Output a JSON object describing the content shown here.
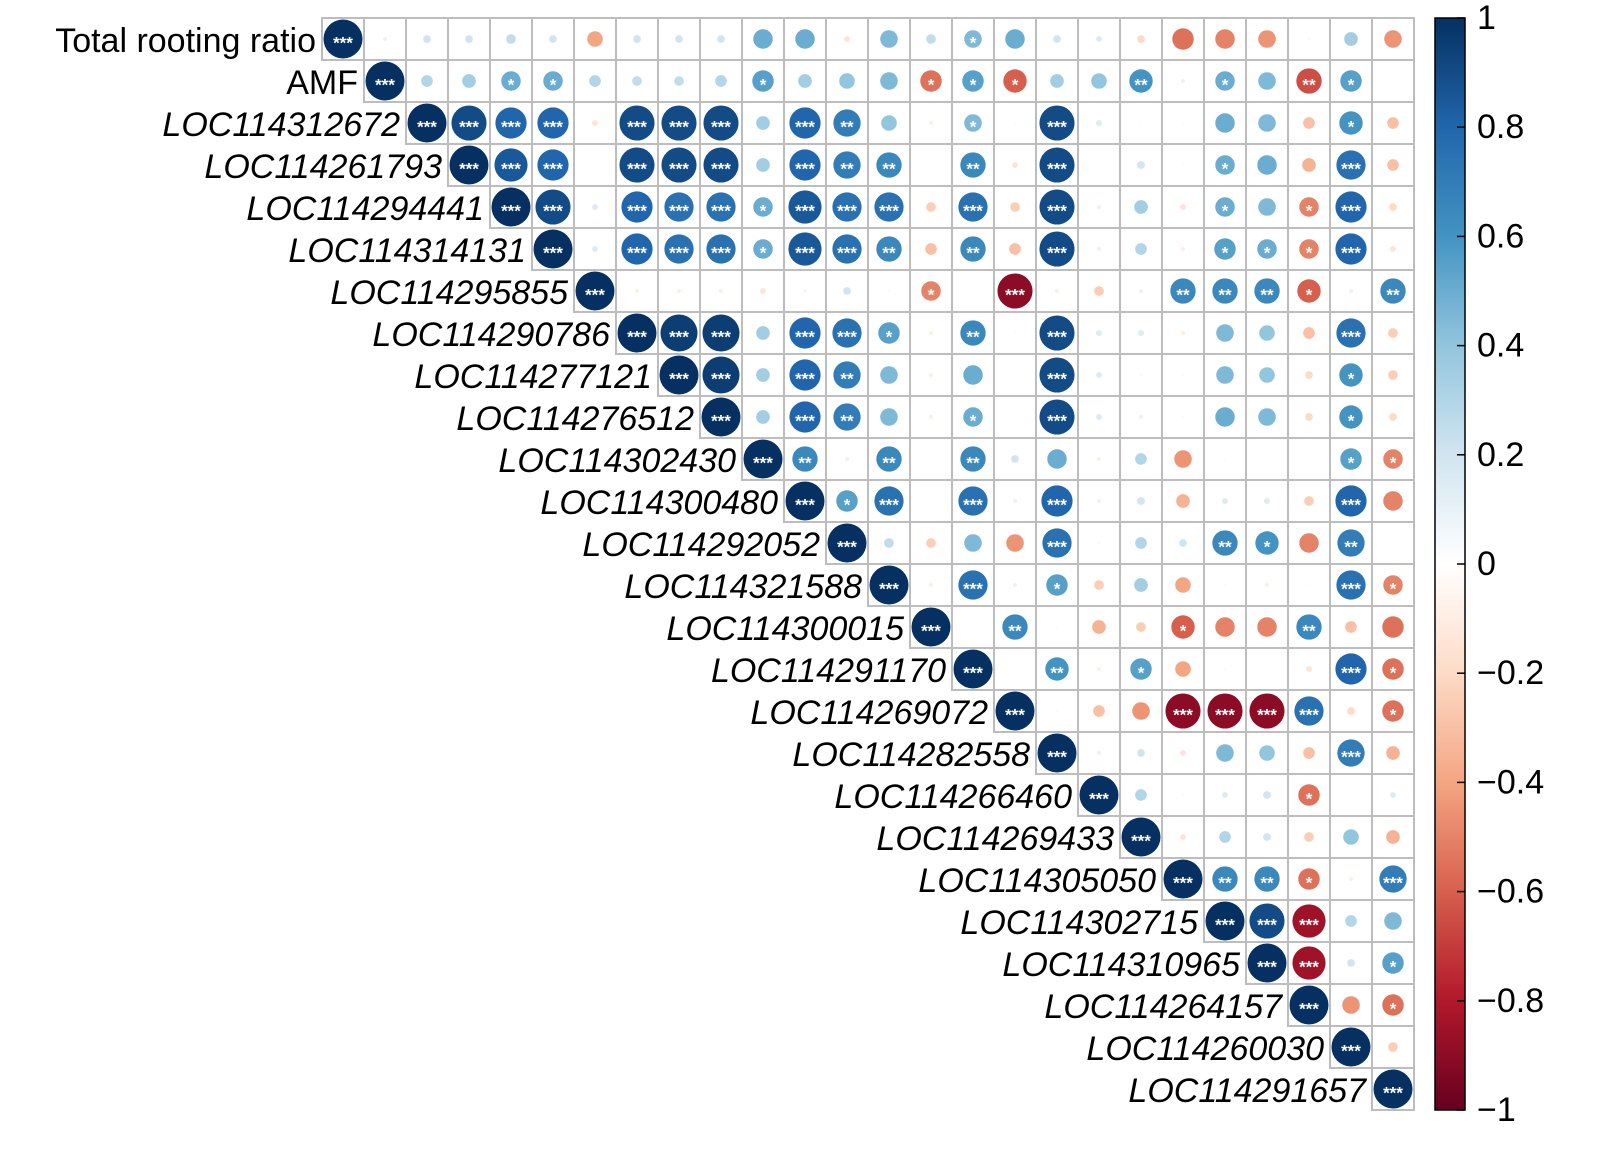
{
  "chart_data": {
    "type": "corrplot",
    "variables": [
      "Total rooting ratio",
      "AMF",
      "LOC114312672",
      "LOC114261793",
      "LOC114294441",
      "LOC114314131",
      "LOC114295855",
      "LOC114290786",
      "LOC114277121",
      "LOC114276512",
      "LOC114302430",
      "LOC114300480",
      "LOC114292052",
      "LOC114321588",
      "LOC114300015",
      "LOC114291170",
      "LOC114269072",
      "LOC114282558",
      "LOC114266460",
      "LOC114269433",
      "LOC114305050",
      "LOC114302715",
      "LOC114310965",
      "LOC114264157",
      "LOC114260030",
      "LOC114291657"
    ],
    "matrix": [
      [
        1,
        0.1,
        0.2,
        0.2,
        0.25,
        0.2,
        -0.4,
        0.2,
        0.2,
        0.2,
        0.5,
        0.5,
        -0.15,
        0.45,
        0.25,
        0.45,
        0.5,
        0.2,
        0.15,
        -0.2,
        -0.55,
        -0.5,
        -0.45,
        0.05,
        0.35,
        -0.45
      ],
      [
        1,
        0.3,
        0.35,
        0.5,
        0.5,
        0.3,
        0.25,
        0.25,
        0.3,
        0.55,
        0.35,
        0.4,
        0.45,
        -0.55,
        0.55,
        -0.6,
        0.35,
        0.4,
        0.6,
        0.1,
        0.5,
        0.45,
        -0.65,
        0.55,
        0.02
      ],
      [
        1,
        0.9,
        0.8,
        0.8,
        -0.15,
        0.9,
        0.9,
        0.9,
        0.35,
        0.8,
        0.7,
        0.4,
        -0.1,
        0.45,
        -0.05,
        0.9,
        0.15,
        0.05,
        -0.05,
        0.5,
        0.45,
        -0.3,
        0.6,
        -0.3
      ],
      [
        1,
        0.85,
        0.8,
        0.02,
        0.9,
        0.9,
        0.9,
        0.35,
        0.8,
        0.7,
        0.65,
        -0.05,
        0.65,
        -0.15,
        0.9,
        0.01,
        0.2,
        -0.05,
        0.5,
        0.5,
        -0.35,
        0.75,
        -0.3
      ],
      [
        1,
        0.9,
        0.15,
        0.8,
        0.75,
        0.75,
        0.5,
        0.85,
        0.75,
        0.75,
        -0.25,
        0.75,
        -0.25,
        0.9,
        0.1,
        0.35,
        -0.15,
        0.5,
        0.45,
        -0.5,
        0.8,
        -0.2
      ],
      [
        1,
        0.15,
        0.8,
        0.75,
        0.75,
        0.5,
        0.85,
        0.75,
        0.65,
        -0.3,
        0.65,
        -0.3,
        0.9,
        0.1,
        0.3,
        -0.1,
        0.55,
        0.5,
        -0.5,
        0.8,
        -0.15
      ],
      [
        1,
        -0.1,
        -0.1,
        -0.1,
        -0.15,
        -0.08,
        0.2,
        0.05,
        -0.5,
        0.0,
        -0.9,
        -0.1,
        -0.25,
        0.1,
        0.65,
        0.65,
        0.65,
        -0.6,
        0.1,
        0.65
      ],
      [
        1,
        0.95,
        0.95,
        0.35,
        0.8,
        0.75,
        0.55,
        -0.1,
        0.65,
        -0.05,
        0.9,
        0.15,
        0.15,
        -0.1,
        0.45,
        0.4,
        -0.3,
        0.75,
        -0.25
      ],
      [
        1,
        0.95,
        0.35,
        0.8,
        0.7,
        0.45,
        -0.1,
        0.5,
        -0.02,
        0.9,
        0.15,
        0.05,
        -0.05,
        0.45,
        0.4,
        -0.2,
        0.6,
        -0.25
      ],
      [
        1,
        0.35,
        0.8,
        0.7,
        0.45,
        -0.1,
        0.5,
        -0.02,
        0.9,
        0.15,
        0.1,
        -0.05,
        0.5,
        0.45,
        -0.2,
        0.6,
        -0.2
      ],
      [
        1,
        0.65,
        0.1,
        0.65,
        -0.05,
        0.65,
        0.2,
        0.5,
        -0.1,
        0.3,
        -0.45,
        -0.05,
        -0.05,
        0.02,
        0.55,
        -0.5
      ],
      [
        1,
        0.55,
        0.75,
        -0.05,
        0.75,
        0.1,
        0.8,
        0.1,
        0.2,
        -0.35,
        0.15,
        0.15,
        -0.25,
        0.8,
        -0.5
      ],
      [
        1,
        0.25,
        -0.25,
        0.45,
        -0.45,
        0.75,
        0.05,
        0.3,
        0.2,
        0.65,
        0.6,
        -0.5,
        0.7,
        0.02
      ],
      [
        1,
        -0.1,
        0.75,
        0.1,
        0.55,
        -0.25,
        0.35,
        -0.4,
        -0.05,
        -0.1,
        -0.05,
        0.75,
        -0.5
      ],
      [
        1,
        -0.05,
        0.65,
        -0.05,
        -0.35,
        -0.25,
        -0.6,
        -0.5,
        -0.5,
        0.65,
        -0.3,
        -0.55
      ],
      [
        1,
        0.02,
        0.6,
        -0.1,
        0.55,
        -0.4,
        0.05,
        0.02,
        -0.15,
        0.8,
        -0.55
      ],
      [
        1,
        -0.05,
        -0.3,
        -0.45,
        -0.9,
        -0.9,
        -0.9,
        0.75,
        -0.2,
        -0.55
      ],
      [
        1,
        0.1,
        0.2,
        -0.15,
        0.45,
        0.4,
        -0.3,
        0.7,
        -0.35
      ],
      [
        1,
        0.3,
        0.05,
        0.15,
        0.2,
        -0.55,
        0.02,
        0.15
      ],
      [
        1,
        -0.15,
        0.3,
        0.2,
        -0.25,
        0.4,
        -0.35
      ],
      [
        1,
        0.65,
        0.65,
        -0.55,
        -0.1,
        0.7
      ],
      [
        1,
        0.9,
        -0.85,
        0.3,
        0.45
      ],
      [
        1,
        -0.85,
        0.2,
        0.55
      ],
      [
        1,
        -0.45,
        -0.55
      ],
      [
        1,
        -0.25
      ],
      [
        1
      ]
    ],
    "significance": [
      [
        "***",
        null,
        null,
        null,
        null,
        null,
        null,
        null,
        null,
        null,
        null,
        null,
        null,
        null,
        null,
        "*",
        null,
        null,
        null,
        null,
        null,
        null,
        null,
        null,
        null,
        null
      ],
      [
        "***",
        null,
        null,
        "*",
        "*",
        null,
        null,
        null,
        null,
        "*",
        null,
        null,
        null,
        "*",
        "*",
        "*",
        null,
        null,
        "**",
        null,
        "*",
        null,
        "**",
        "*",
        null
      ],
      [
        "***",
        "***",
        "***",
        "***",
        null,
        "***",
        "***",
        "***",
        null,
        "***",
        "**",
        null,
        null,
        "*",
        null,
        "***",
        null,
        null,
        null,
        null,
        null,
        null,
        "*",
        null
      ],
      [
        "***",
        "***",
        "***",
        null,
        "***",
        "***",
        "***",
        null,
        "***",
        "**",
        "**",
        null,
        "**",
        null,
        "***",
        null,
        null,
        null,
        "*",
        null,
        null,
        "***",
        null
      ],
      [
        "***",
        "***",
        null,
        "***",
        "***",
        "***",
        "*",
        "***",
        "***",
        "***",
        null,
        "***",
        null,
        "***",
        null,
        null,
        null,
        "*",
        null,
        "*",
        "***",
        null
      ],
      [
        "***",
        null,
        "***",
        "***",
        "***",
        "*",
        "***",
        "***",
        "**",
        null,
        "**",
        null,
        "***",
        null,
        null,
        null,
        "*",
        "*",
        "*",
        "***",
        null
      ],
      [
        "***",
        null,
        null,
        null,
        null,
        null,
        null,
        null,
        "*",
        null,
        "***",
        null,
        null,
        null,
        "**",
        "**",
        "**",
        "*",
        null,
        "**"
      ],
      [
        "***",
        "***",
        "***",
        null,
        "***",
        "***",
        "*",
        null,
        "**",
        null,
        "***",
        null,
        null,
        null,
        null,
        null,
        null,
        "***",
        null
      ],
      [
        "***",
        "***",
        null,
        "***",
        "**",
        null,
        null,
        null,
        null,
        "***",
        null,
        null,
        null,
        null,
        null,
        null,
        "*",
        null
      ],
      [
        "***",
        null,
        "***",
        "**",
        null,
        null,
        "*",
        null,
        "***",
        null,
        null,
        null,
        null,
        null,
        null,
        "*",
        null
      ],
      [
        "***",
        "**",
        null,
        "**",
        null,
        "**",
        null,
        null,
        null,
        null,
        null,
        null,
        null,
        null,
        "*",
        "*"
      ],
      [
        "***",
        "*",
        "***",
        null,
        "***",
        null,
        "***",
        null,
        null,
        null,
        null,
        null,
        null,
        "***",
        null
      ],
      [
        "***",
        null,
        null,
        null,
        null,
        "***",
        null,
        null,
        null,
        "**",
        "*",
        null,
        "**",
        null
      ],
      [
        "***",
        null,
        "***",
        null,
        "*",
        null,
        null,
        null,
        null,
        null,
        null,
        "***",
        "*"
      ],
      [
        "***",
        null,
        "**",
        null,
        null,
        null,
        "*",
        null,
        null,
        "**",
        null,
        null
      ],
      [
        "***",
        null,
        "**",
        null,
        "*",
        null,
        null,
        null,
        null,
        "***",
        "*"
      ],
      [
        "***",
        null,
        null,
        null,
        "***",
        "***",
        "***",
        "***",
        null,
        "*"
      ],
      [
        "***",
        null,
        null,
        null,
        null,
        null,
        null,
        "***",
        null
      ],
      [
        "***",
        null,
        null,
        null,
        null,
        "*",
        null,
        null
      ],
      [
        "***",
        null,
        null,
        null,
        null,
        null,
        null
      ],
      [
        "***",
        "**",
        "**",
        "*",
        null,
        "***"
      ],
      [
        "***",
        "***",
        "***",
        null,
        null
      ],
      [
        "***",
        "***",
        null,
        "*"
      ],
      [
        "***",
        null,
        "*"
      ],
      [
        "***",
        null
      ],
      [
        "***"
      ]
    ],
    "colormap": [
      "#67001F",
      "#B2182B",
      "#D6604D",
      "#F4A582",
      "#FDDBC7",
      "#FFFFFF",
      "#D1E5F0",
      "#92C5DE",
      "#4393C3",
      "#2166AC",
      "#053061"
    ],
    "clim": [
      -1,
      1
    ],
    "cticks": [
      {
        "value": -1,
        "label": "−1"
      },
      {
        "value": -0.8,
        "label": "−0.8"
      },
      {
        "value": -0.6,
        "label": "−0.6"
      },
      {
        "value": -0.4,
        "label": "−0.4"
      },
      {
        "value": -0.2,
        "label": "−0.2"
      },
      0,
      0.2,
      0.4,
      0.6,
      0.8,
      1
    ]
  }
}
